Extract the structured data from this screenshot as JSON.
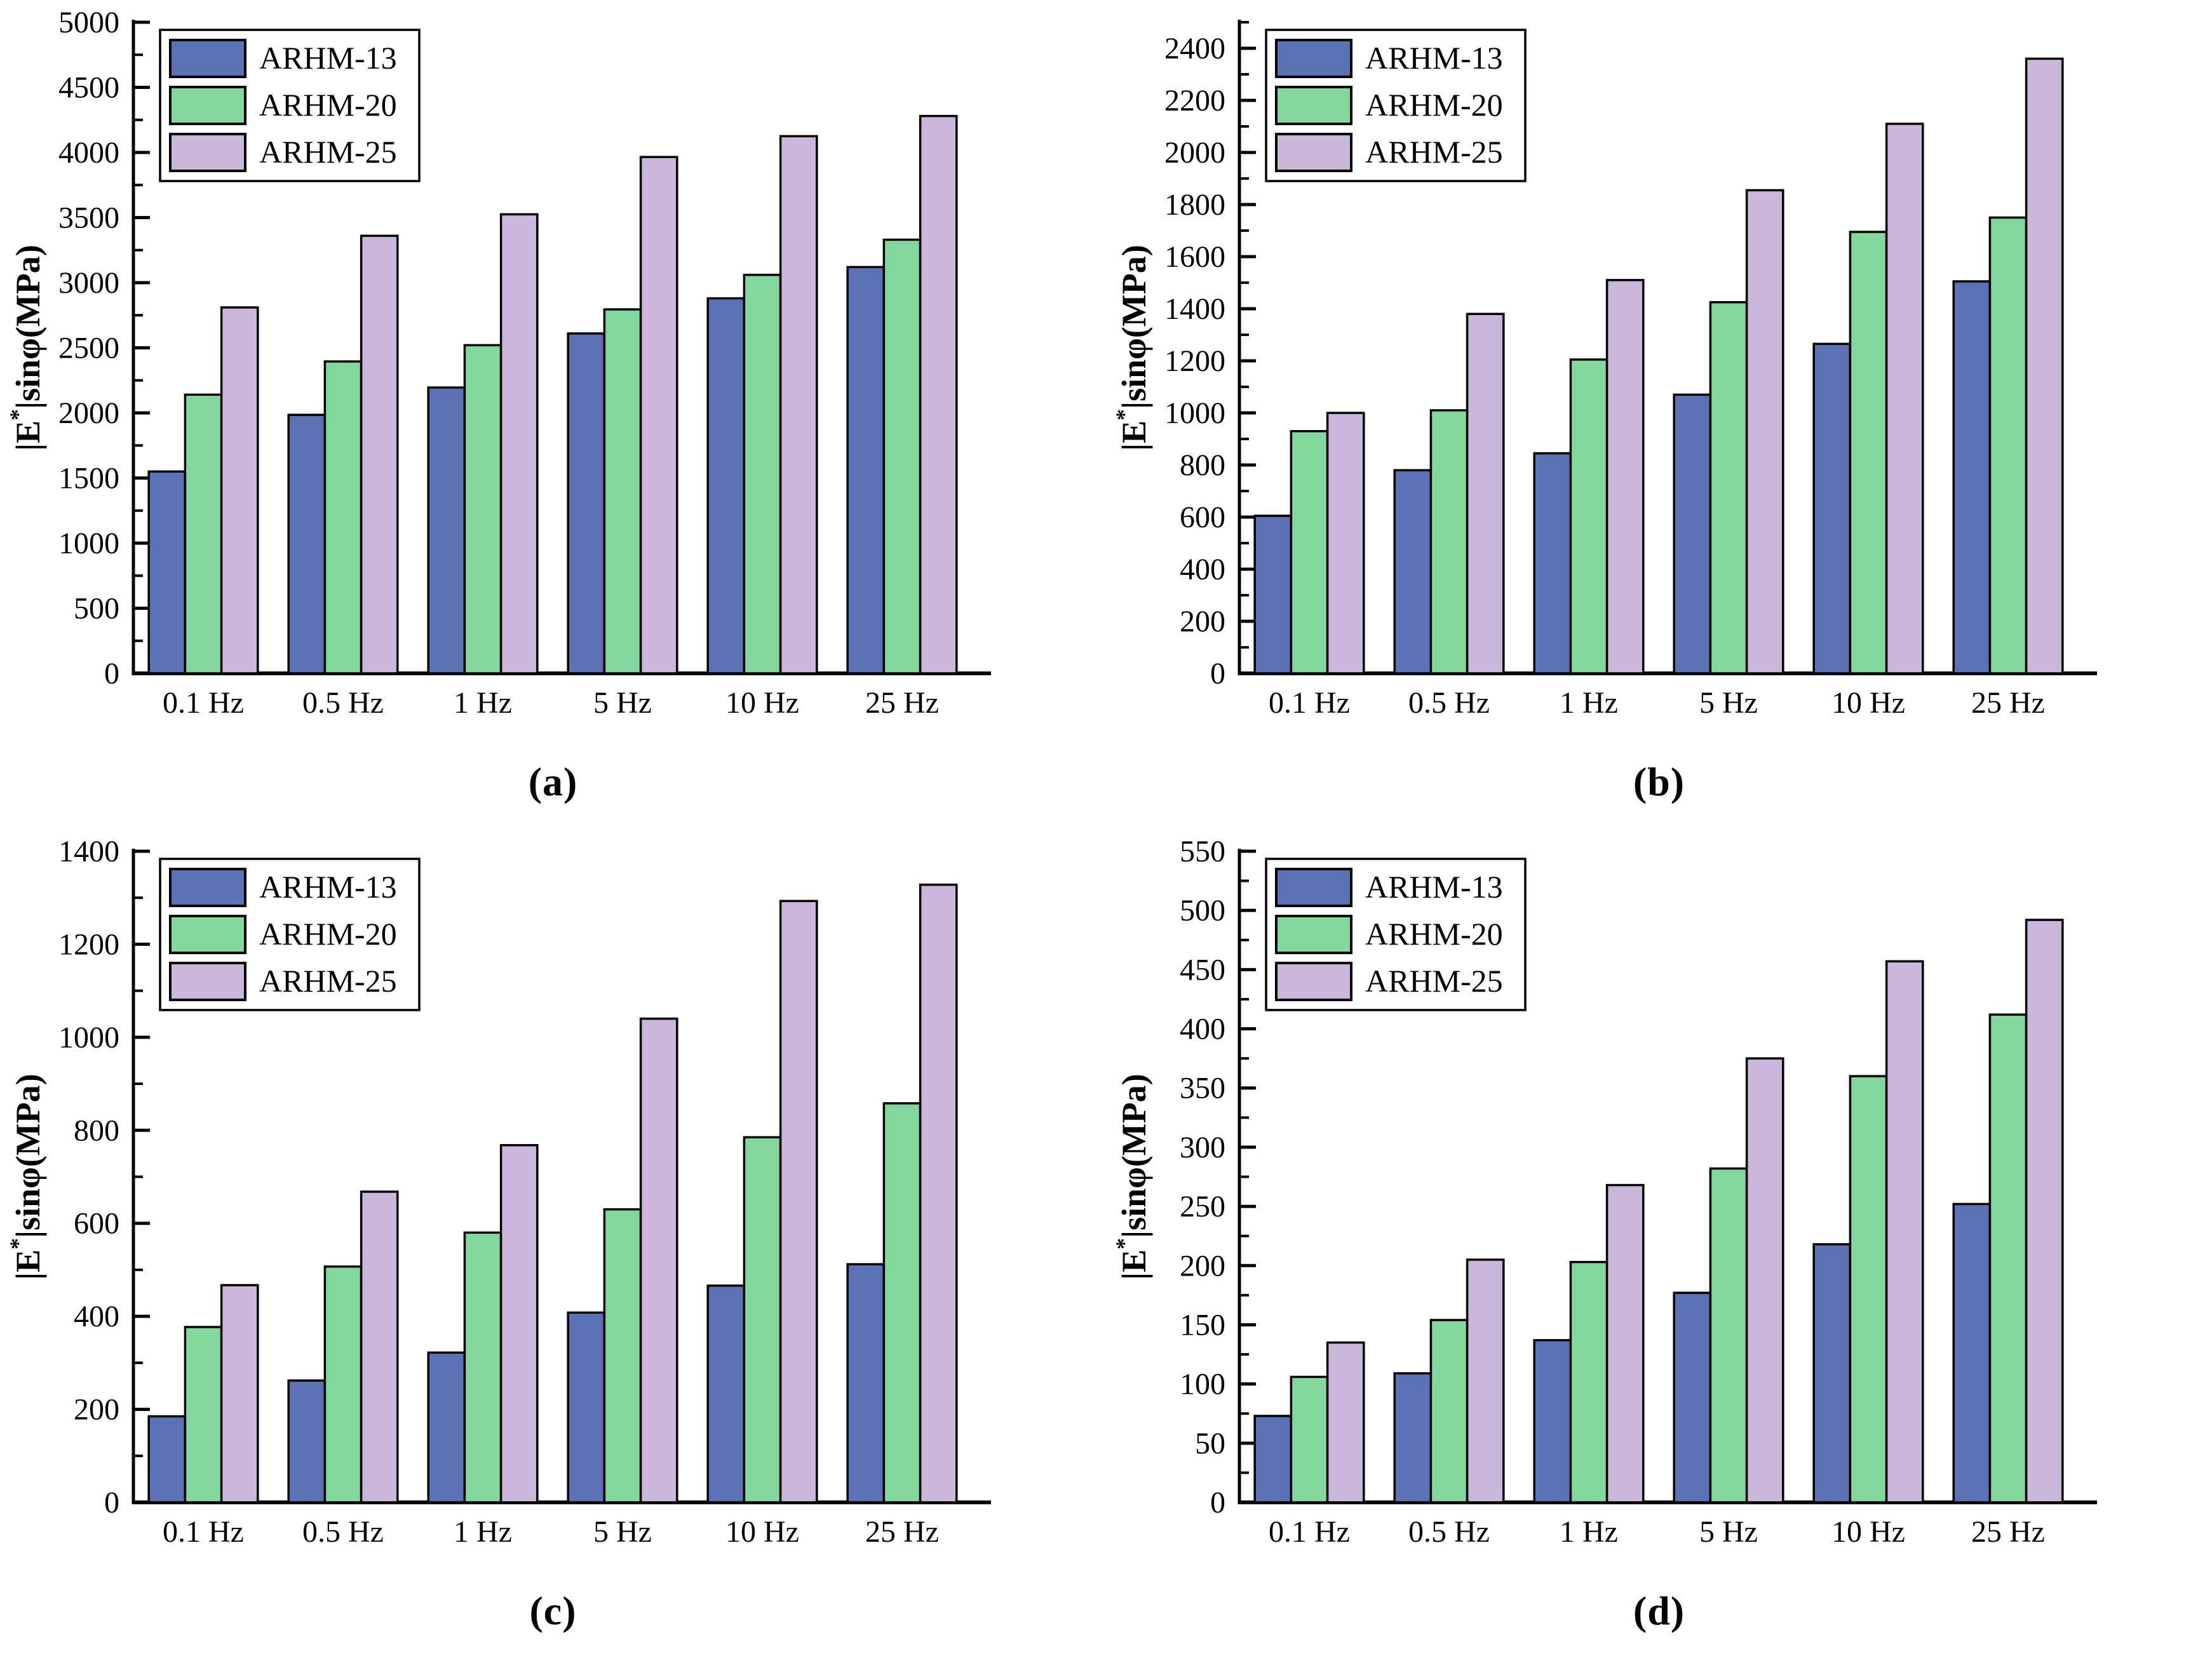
{
  "colors": {
    "ARHM-13": "#5b71b5",
    "ARHM-20": "#82d79c",
    "ARHM-25": "#c9b6da",
    "bar_border": "#000000",
    "axis": "#000000",
    "legend_background": "#ffffff"
  },
  "chart_data": [
    {
      "type": "bar",
      "panel_label": "(a)",
      "categories": [
        "0.1 Hz",
        "0.5 Hz",
        "1 Hz",
        "5 Hz",
        "10 Hz",
        "25 Hz"
      ],
      "series": [
        {
          "name": "ARHM-13",
          "values": [
            1550,
            1985,
            2195,
            2610,
            2880,
            3120
          ]
        },
        {
          "name": "ARHM-20",
          "values": [
            2140,
            2395,
            2520,
            2795,
            3060,
            3330
          ]
        },
        {
          "name": "ARHM-25",
          "values": [
            2810,
            3360,
            3525,
            3965,
            4125,
            4280
          ]
        }
      ],
      "ylabel": "|E*|sinφ(MPa)",
      "xlabel": "",
      "ylim": [
        0,
        5000
      ],
      "ytick_step": 500,
      "minor_tick_step": 250,
      "grid": false,
      "legend_position": "top-left",
      "legend_entries": [
        "ARHM-13",
        "ARHM-20",
        "ARHM-25"
      ]
    },
    {
      "type": "bar",
      "panel_label": "(b)",
      "categories": [
        "0.1 Hz",
        "0.5 Hz",
        "1 Hz",
        "5 Hz",
        "10 Hz",
        "25 Hz"
      ],
      "series": [
        {
          "name": "ARHM-13",
          "values": [
            605,
            780,
            845,
            1070,
            1265,
            1505
          ]
        },
        {
          "name": "ARHM-20",
          "values": [
            930,
            1010,
            1205,
            1425,
            1695,
            1750
          ]
        },
        {
          "name": "ARHM-25",
          "values": [
            1000,
            1380,
            1510,
            1855,
            2110,
            2360
          ]
        }
      ],
      "ylabel": "|E*|sinφ(MPa)",
      "xlabel": "",
      "ylim": [
        0,
        2500
      ],
      "ytick_step": 200,
      "minor_tick_step": 100,
      "grid": false,
      "legend_position": "top-left",
      "legend_entries": [
        "ARHM-13",
        "ARHM-20",
        "ARHM-25"
      ]
    },
    {
      "type": "bar",
      "panel_label": "(c)",
      "categories": [
        "0.1 Hz",
        "0.5 Hz",
        "1 Hz",
        "5 Hz",
        "10 Hz",
        "25 Hz"
      ],
      "series": [
        {
          "name": "ARHM-13",
          "values": [
            185,
            262,
            322,
            408,
            466,
            512
          ]
        },
        {
          "name": "ARHM-20",
          "values": [
            377,
            507,
            580,
            630,
            785,
            858
          ]
        },
        {
          "name": "ARHM-25",
          "values": [
            467,
            668,
            768,
            1040,
            1293,
            1328
          ]
        }
      ],
      "ylabel": "|E*|sinφ(MPa)",
      "xlabel": "",
      "ylim": [
        0,
        1400
      ],
      "ytick_step": 200,
      "minor_tick_step": 100,
      "grid": false,
      "legend_position": "top-left",
      "legend_entries": [
        "ARHM-13",
        "ARHM-20",
        "ARHM-25"
      ]
    },
    {
      "type": "bar",
      "panel_label": "(d)",
      "categories": [
        "0.1 Hz",
        "0.5 Hz",
        "1 Hz",
        "5 Hz",
        "10 Hz",
        "25 Hz"
      ],
      "series": [
        {
          "name": "ARHM-13",
          "values": [
            73,
            109,
            137,
            177,
            218,
            252
          ]
        },
        {
          "name": "ARHM-20",
          "values": [
            106,
            154,
            203,
            282,
            360,
            412
          ]
        },
        {
          "name": "ARHM-25",
          "values": [
            135,
            205,
            268,
            375,
            457,
            492
          ]
        }
      ],
      "ylabel": "|E*|sinφ(MPa)",
      "xlabel": "",
      "ylim": [
        0,
        550
      ],
      "ytick_step": 50,
      "minor_tick_step": 25,
      "grid": false,
      "legend_position": "top-left",
      "legend_entries": [
        "ARHM-13",
        "ARHM-20",
        "ARHM-25"
      ]
    }
  ]
}
